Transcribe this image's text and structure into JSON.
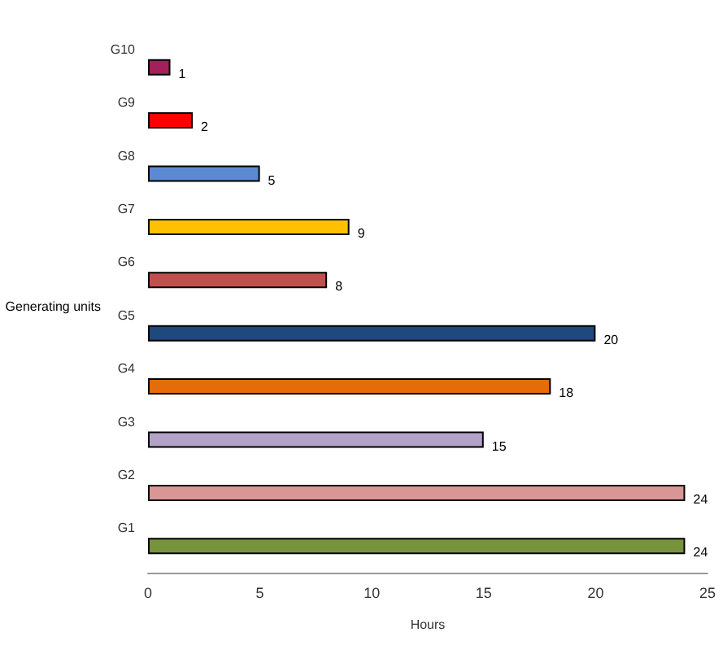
{
  "chart_data": {
    "type": "bar",
    "orientation": "horizontal",
    "xlabel": "Hours",
    "ylabel": "Generating units",
    "categories": [
      "G10",
      "G9",
      "G8",
      "G7",
      "G6",
      "G5",
      "G4",
      "G3",
      "G2",
      "G1"
    ],
    "values": [
      1,
      2,
      5,
      9,
      8,
      20,
      18,
      15,
      24,
      24
    ],
    "colors": [
      "#a3205a",
      "#ff0000",
      "#5b8ad0",
      "#ffc000",
      "#c0504d",
      "#1f497d",
      "#e46c0a",
      "#b3a2c7",
      "#d99694",
      "#77933c"
    ],
    "xlim": [
      0,
      25
    ],
    "xticks": [
      0,
      5,
      10,
      15,
      20,
      25
    ],
    "data_labels": true
  }
}
